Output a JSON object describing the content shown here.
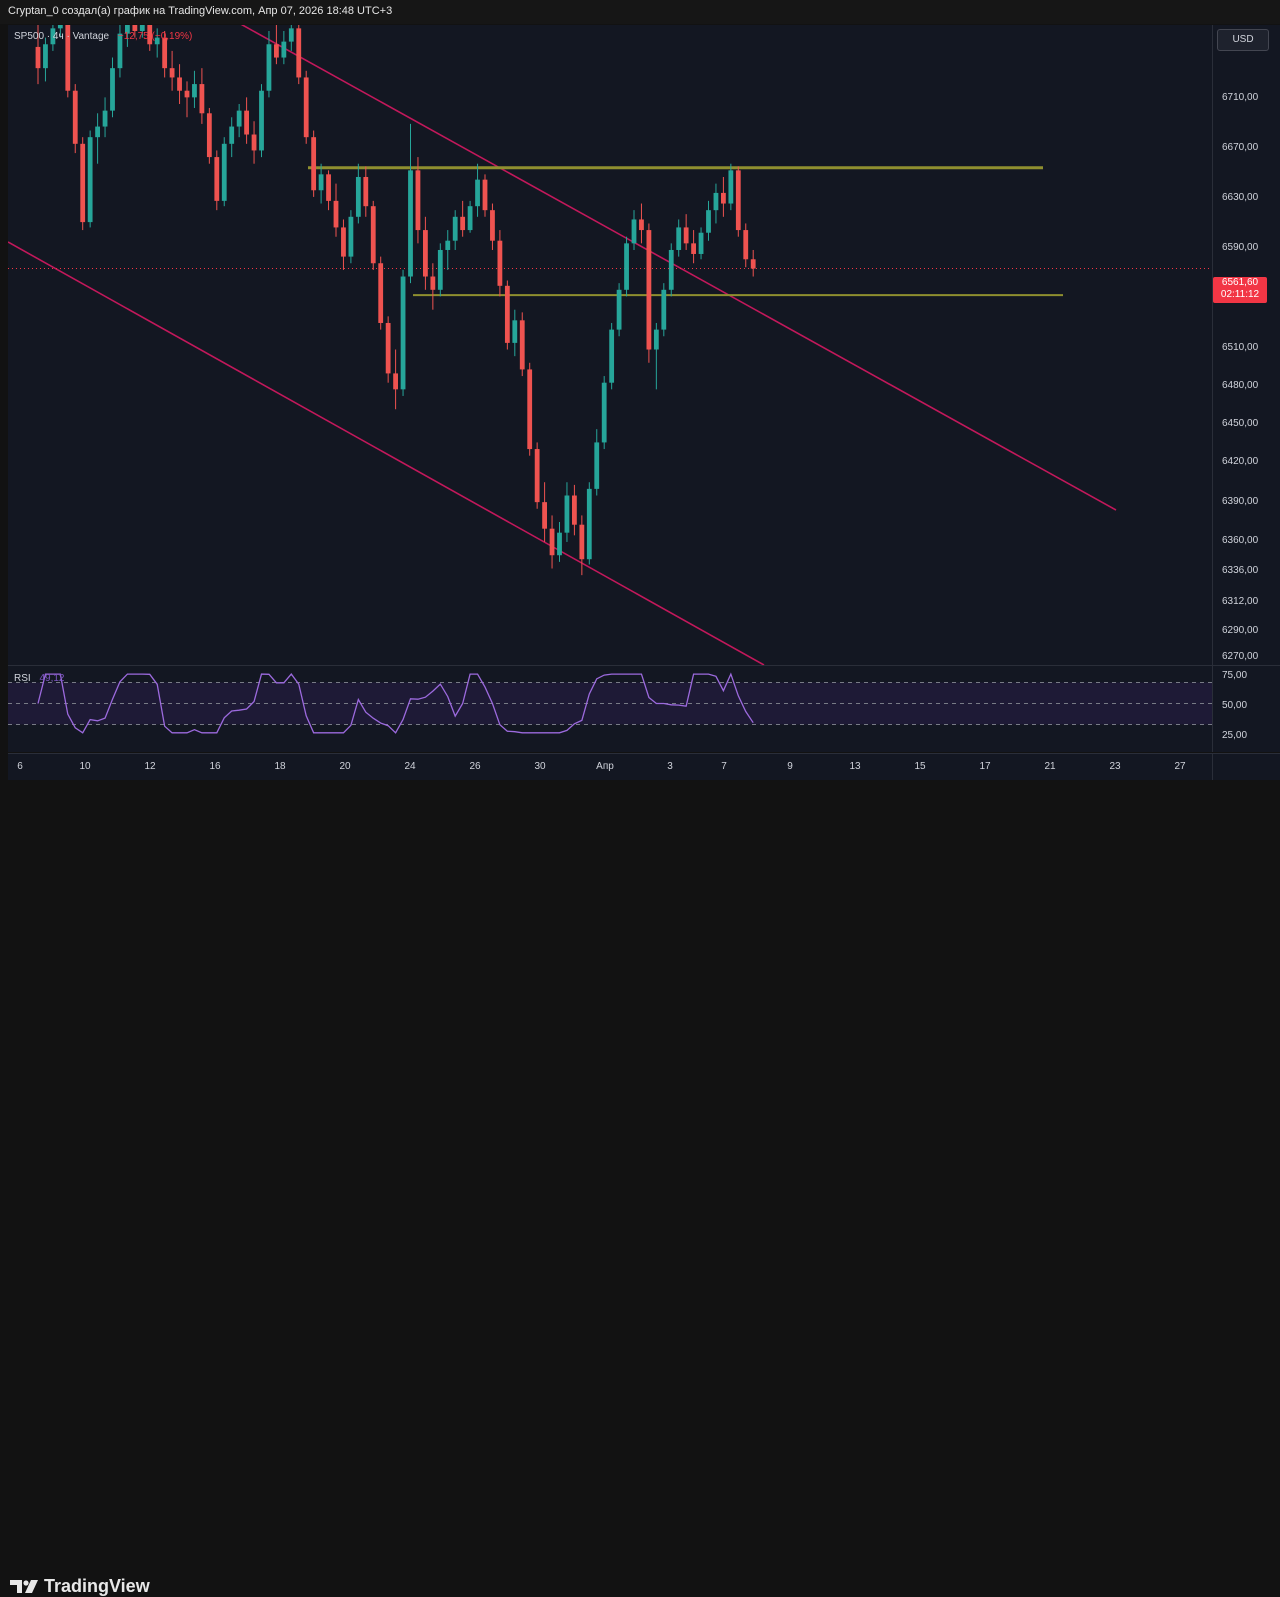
{
  "header": {
    "text": "Cryptan_0 создал(а) график на TradingView.com, Апр 07, 2026 18:48 UTC+3"
  },
  "legend": {
    "symbol": "SP500 · 4ч · Vantage",
    "change": "−12,75 (−0,19%)"
  },
  "rsi": {
    "name": "RSI",
    "value": "49,12",
    "levels": [
      "75,00",
      "50,00",
      "25,00"
    ]
  },
  "price_axis": {
    "ticks": [
      "6710,00",
      "6670,00",
      "6630,00",
      "6590,00",
      "6510,00",
      "6480,00",
      "6450,00",
      "6420,00",
      "6390,00",
      "6360,00",
      "6336,00",
      "6312,00",
      "6290,00",
      "6270,00"
    ],
    "currency_button": "USD",
    "current_price": "6561,60",
    "countdown": "02:11:12"
  },
  "time_axis": {
    "ticks": [
      "6",
      "10",
      "12",
      "16",
      "18",
      "20",
      "24",
      "26",
      "30",
      "Апр",
      "3",
      "7",
      "9",
      "13",
      "15",
      "17",
      "21",
      "23",
      "27"
    ]
  },
  "footer": {
    "brand": "TradingView"
  },
  "colors": {
    "background": "#131722",
    "up": "#26a69a",
    "down": "#ef5350",
    "channel": "#c2185b",
    "level": "#8f8f2f",
    "rsi_line": "#9c6ade",
    "price_label": "#f23645"
  },
  "levels": {
    "resistance": 6637,
    "support": 6541
  },
  "chart_data": {
    "type": "candlestick",
    "timeframe": "4ч",
    "currency": "USD",
    "candles": [
      [
        6728,
        6745,
        6700,
        6712
      ],
      [
        6712,
        6735,
        6702,
        6730
      ],
      [
        6730,
        6748,
        6725,
        6742
      ],
      [
        6742,
        6750,
        6735,
        6745
      ],
      [
        6745,
        6748,
        6690,
        6695
      ],
      [
        6695,
        6700,
        6648,
        6655
      ],
      [
        6655,
        6660,
        6590,
        6596
      ],
      [
        6596,
        6665,
        6592,
        6660
      ],
      [
        6660,
        6678,
        6640,
        6668
      ],
      [
        6668,
        6690,
        6660,
        6680
      ],
      [
        6680,
        6720,
        6675,
        6712
      ],
      [
        6712,
        6745,
        6705,
        6738
      ],
      [
        6738,
        6750,
        6728,
        6745
      ],
      [
        6745,
        6750,
        6735,
        6740
      ],
      [
        6740,
        6750,
        6735,
        6745
      ],
      [
        6745,
        6748,
        6725,
        6730
      ],
      [
        6730,
        6742,
        6720,
        6735
      ],
      [
        6735,
        6740,
        6705,
        6712
      ],
      [
        6712,
        6725,
        6695,
        6705
      ],
      [
        6705,
        6715,
        6685,
        6695
      ],
      [
        6695,
        6702,
        6675,
        6690
      ],
      [
        6690,
        6710,
        6682,
        6700
      ],
      [
        6700,
        6712,
        6670,
        6678
      ],
      [
        6678,
        6682,
        6640,
        6645
      ],
      [
        6645,
        6650,
        6605,
        6612
      ],
      [
        6612,
        6660,
        6608,
        6655
      ],
      [
        6655,
        6675,
        6645,
        6668
      ],
      [
        6668,
        6685,
        6660,
        6680
      ],
      [
        6680,
        6690,
        6655,
        6662
      ],
      [
        6662,
        6672,
        6640,
        6650
      ],
      [
        6650,
        6700,
        6645,
        6695
      ],
      [
        6695,
        6740,
        6690,
        6730
      ],
      [
        6730,
        6745,
        6715,
        6720
      ],
      [
        6720,
        6740,
        6715,
        6732
      ],
      [
        6732,
        6750,
        6725,
        6742
      ],
      [
        6742,
        6748,
        6700,
        6705
      ],
      [
        6705,
        6710,
        6655,
        6660
      ],
      [
        6660,
        6665,
        6615,
        6620
      ],
      [
        6620,
        6640,
        6610,
        6632
      ],
      [
        6632,
        6635,
        6605,
        6612
      ],
      [
        6612,
        6625,
        6585,
        6592
      ],
      [
        6592,
        6598,
        6560,
        6570
      ],
      [
        6570,
        6605,
        6565,
        6600
      ],
      [
        6600,
        6640,
        6595,
        6630
      ],
      [
        6630,
        6638,
        6600,
        6608
      ],
      [
        6608,
        6612,
        6560,
        6565
      ],
      [
        6565,
        6570,
        6515,
        6520
      ],
      [
        6520,
        6525,
        6475,
        6482
      ],
      [
        6482,
        6500,
        6455,
        6470
      ],
      [
        6470,
        6560,
        6465,
        6555
      ],
      [
        6555,
        6670,
        6550,
        6635
      ],
      [
        6635,
        6645,
        6580,
        6590
      ],
      [
        6590,
        6600,
        6545,
        6555
      ],
      [
        6555,
        6565,
        6530,
        6545
      ],
      [
        6545,
        6580,
        6540,
        6575
      ],
      [
        6575,
        6590,
        6560,
        6582
      ],
      [
        6582,
        6605,
        6575,
        6600
      ],
      [
        6600,
        6612,
        6585,
        6590
      ],
      [
        6590,
        6612,
        6588,
        6608
      ],
      [
        6608,
        6640,
        6600,
        6628
      ],
      [
        6628,
        6632,
        6600,
        6605
      ],
      [
        6605,
        6610,
        6575,
        6582
      ],
      [
        6582,
        6590,
        6540,
        6548
      ],
      [
        6548,
        6552,
        6500,
        6505
      ],
      [
        6505,
        6530,
        6495,
        6522
      ],
      [
        6522,
        6528,
        6480,
        6485
      ],
      [
        6485,
        6490,
        6420,
        6425
      ],
      [
        6425,
        6430,
        6380,
        6385
      ],
      [
        6385,
        6400,
        6355,
        6365
      ],
      [
        6365,
        6375,
        6335,
        6345
      ],
      [
        6345,
        6370,
        6340,
        6362
      ],
      [
        6362,
        6400,
        6355,
        6390
      ],
      [
        6390,
        6398,
        6360,
        6368
      ],
      [
        6368,
        6375,
        6330,
        6342
      ],
      [
        6342,
        6400,
        6338,
        6395
      ],
      [
        6395,
        6440,
        6390,
        6430
      ],
      [
        6430,
        6480,
        6425,
        6475
      ],
      [
        6475,
        6520,
        6470,
        6515
      ],
      [
        6515,
        6550,
        6510,
        6545
      ],
      [
        6545,
        6585,
        6540,
        6580
      ],
      [
        6580,
        6605,
        6575,
        6598
      ],
      [
        6598,
        6610,
        6580,
        6590
      ],
      [
        6590,
        6595,
        6490,
        6500
      ],
      [
        6500,
        6520,
        6470,
        6515
      ],
      [
        6515,
        6550,
        6510,
        6545
      ],
      [
        6545,
        6580,
        6540,
        6575
      ],
      [
        6575,
        6598,
        6570,
        6592
      ],
      [
        6592,
        6602,
        6575,
        6580
      ],
      [
        6580,
        6590,
        6565,
        6572
      ],
      [
        6572,
        6592,
        6568,
        6588
      ],
      [
        6588,
        6612,
        6582,
        6605
      ],
      [
        6605,
        6625,
        6595,
        6618
      ],
      [
        6618,
        6630,
        6600,
        6610
      ],
      [
        6610,
        6640,
        6605,
        6635
      ],
      [
        6635,
        6638,
        6585,
        6590
      ],
      [
        6590,
        6595,
        6562,
        6568
      ],
      [
        6568,
        6575,
        6555,
        6561
      ]
    ]
  }
}
